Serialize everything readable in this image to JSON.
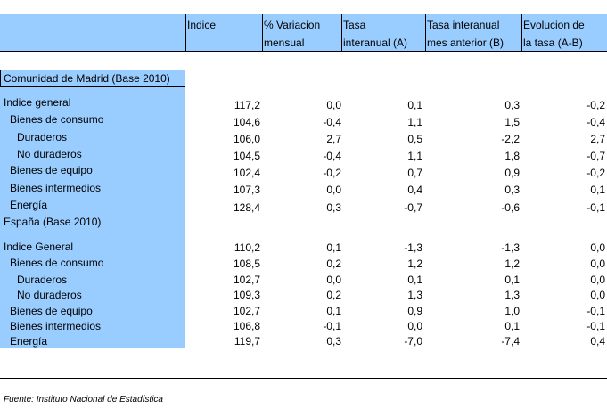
{
  "headers": [
    {
      "line1": "Indice",
      "line2": ""
    },
    {
      "line1": "% Variacion",
      "line2": "mensual"
    },
    {
      "line1": "Tasa",
      "line2": "interanual (A)"
    },
    {
      "line1": "Tasa interanual",
      "line2": "mes anterior (B)"
    },
    {
      "line1": "Evolucion de",
      "line2": "la tasa (A-B)"
    }
  ],
  "sections": [
    {
      "title": "Comunidad de Madrid (Base 2010)",
      "rows": [
        {
          "label": "Indice general",
          "values": [
            "117,2",
            "0,0",
            "0,1",
            "0,3",
            "-0,2"
          ]
        },
        {
          "label": "Bienes de consumo",
          "values": [
            "104,6",
            "-0,4",
            "1,1",
            "1,5",
            "-0,4"
          ]
        },
        {
          "label": "Duraderos",
          "values": [
            "106,0",
            "2,7",
            "0,5",
            "-2,2",
            "2,7"
          ]
        },
        {
          "label": "No duraderos",
          "values": [
            "104,5",
            "-0,4",
            "1,1",
            "1,8",
            "-0,7"
          ]
        },
        {
          "label": "Bienes de equipo",
          "values": [
            "102,4",
            "-0,2",
            "0,7",
            "0,9",
            "-0,2"
          ]
        },
        {
          "label": "Bienes intermedios",
          "values": [
            "107,3",
            "0,0",
            "0,4",
            "0,3",
            "0,1"
          ]
        },
        {
          "label": "Energía",
          "values": [
            "128,4",
            "0,3",
            "-0,7",
            "-0,6",
            "-0,1"
          ]
        }
      ]
    },
    {
      "title": "España (Base 2010)",
      "rows": [
        {
          "label": "Indice General",
          "values": [
            "110,2",
            "0,1",
            "-1,3",
            "-1,3",
            "0,0"
          ]
        },
        {
          "label": "Bienes de consumo",
          "values": [
            "108,5",
            "0,2",
            "1,2",
            "1,2",
            "0,0"
          ]
        },
        {
          "label": "Duraderos",
          "values": [
            "102,7",
            "0,0",
            "0,1",
            "0,1",
            "0,0"
          ]
        },
        {
          "label": "No duraderos",
          "values": [
            "109,3",
            "0,2",
            "1,3",
            "1,3",
            "0,0"
          ]
        },
        {
          "label": "Bienes de equipo",
          "values": [
            "102,7",
            "0,1",
            "0,9",
            "1,0",
            "-0,1"
          ]
        },
        {
          "label": "Bienes intermedios",
          "values": [
            "106,8",
            "-0,1",
            "0,0",
            "0,1",
            "-0,1"
          ]
        },
        {
          "label": "Energía",
          "values": [
            "119,7",
            "0,3",
            "-7,0",
            "-7,4",
            "0,4"
          ]
        }
      ]
    }
  ],
  "source": "Fuente: Instituto Nacional de Estadística",
  "colors": {
    "header_fill": "#99ccff"
  }
}
